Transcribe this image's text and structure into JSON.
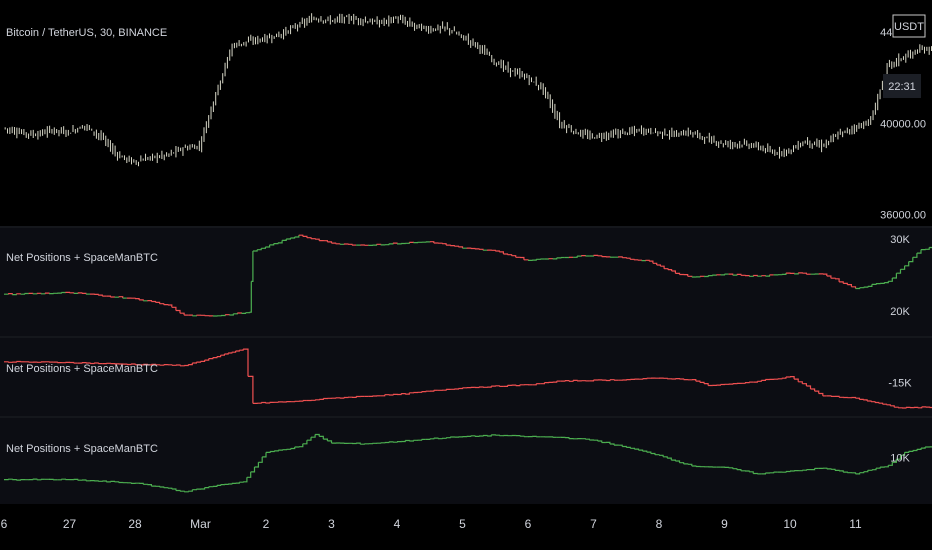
{
  "header": {
    "symbol_title": "Bitcoin / TetherUS, 30, BINANCE",
    "currency": "USDT",
    "countdown": "22:31"
  },
  "colors": {
    "background": "#000000",
    "panel_background": "#0c0d13",
    "text": "#d1d4dc",
    "candles": "#d8d8c8",
    "up": "#4caf50",
    "down": "#f05050",
    "separator": "#2a2e39"
  },
  "chart_data": [
    {
      "type": "candlestick",
      "title": "Bitcoin / TetherUS, 30, BINANCE",
      "y_ticks": [
        "44000.00",
        "40000.00",
        "36000.00"
      ],
      "ylim": [
        35500,
        45400
      ],
      "x_ticks": [
        "6",
        "27",
        "28",
        "Mar",
        "2",
        "3",
        "4",
        "5",
        "6",
        "7",
        "8",
        "9",
        "10",
        "11"
      ],
      "x": [
        0,
        0.5,
        1,
        1.5,
        2,
        2.5,
        3,
        3.5,
        4,
        4.5,
        5,
        5.5,
        6,
        6.5,
        7,
        7.5,
        8,
        8.5,
        9,
        9.5,
        10,
        10.5,
        11,
        11.5,
        12,
        12.5,
        13,
        13.5,
        14,
        14.5,
        15,
        15.5,
        16,
        16.5,
        17,
        17.5,
        18,
        18.5,
        19,
        19.5,
        20,
        20.5,
        21,
        21.5,
        22,
        22.5,
        23,
        23.5,
        24,
        24.5,
        25,
        25.5,
        26,
        26.5,
        27,
        27.5,
        28,
        28.5
      ],
      "close": [
        39800,
        39600,
        39500,
        39700,
        39600,
        39900,
        39400,
        38600,
        38300,
        38500,
        38600,
        38900,
        39000,
        41300,
        43400,
        43600,
        43700,
        43900,
        44300,
        44600,
        44500,
        44600,
        44500,
        44400,
        44600,
        44300,
        44100,
        44200,
        43800,
        43400,
        42700,
        42300,
        42000,
        41500,
        40000,
        39600,
        39400,
        39500,
        39600,
        39700,
        39600,
        39500,
        39600,
        39300,
        39100,
        39100,
        39000,
        38700,
        38800,
        39200,
        39000,
        39500,
        39800,
        40100,
        42500,
        42900,
        43200,
        43300
      ]
    },
    {
      "type": "line",
      "title": "Net Positions + SpaceManBTC",
      "y_ticks": [
        "30K",
        "20K"
      ],
      "ylim": [
        16500,
        31500
      ],
      "x": [
        0,
        2,
        4,
        5,
        5.5,
        6.5,
        7.5,
        7.6,
        9,
        10,
        11,
        13,
        14,
        15,
        16,
        17,
        18,
        19,
        19.7,
        20.5,
        21,
        22,
        23,
        24,
        25,
        26,
        27,
        28,
        28.5
      ],
      "values": [
        22300,
        22500,
        21700,
        20800,
        19400,
        19300,
        19800,
        28300,
        30500,
        29400,
        29100,
        29600,
        28700,
        28300,
        27000,
        27400,
        27700,
        27300,
        26900,
        25200,
        24700,
        25100,
        24800,
        25200,
        25100,
        23100,
        24100,
        28500,
        29000
      ]
    },
    {
      "type": "line",
      "title": "Net Positions + SpaceManBTC",
      "y_ticks": [
        "-15K"
      ],
      "ylim": [
        -19500,
        -9000
      ],
      "x": [
        0,
        2,
        3.5,
        5.5,
        6.5,
        7.3,
        7.6,
        9,
        10,
        12,
        14,
        16,
        17,
        19,
        20,
        21,
        21.5,
        22.5,
        24,
        25,
        26,
        27.3,
        28.5
      ],
      "values": [
        -12200,
        -12300,
        -12500,
        -12700,
        -11500,
        -10500,
        -17800,
        -17500,
        -17100,
        -16600,
        -15700,
        -15300,
        -14800,
        -14600,
        -14400,
        -14600,
        -15400,
        -15100,
        -14200,
        -16800,
        -17100,
        -18400,
        -18300
      ]
    },
    {
      "type": "line",
      "title": "Net Positions + SpaceManBTC",
      "y_ticks": [
        "10K"
      ],
      "ylim": [
        3500,
        15500
      ],
      "x": [
        0,
        2,
        4,
        5,
        5.5,
        6.5,
        7.3,
        8,
        9,
        9.5,
        10,
        11,
        12,
        13,
        14,
        15,
        16,
        17,
        18,
        19,
        20,
        20.5,
        21,
        22,
        23,
        24,
        25,
        26,
        27,
        27.5,
        28.5
      ],
      "values": [
        6900,
        6900,
        6400,
        5700,
        5200,
        6100,
        6600,
        10700,
        11500,
        13200,
        12000,
        11900,
        12200,
        12600,
        12900,
        13100,
        12900,
        12800,
        12400,
        11400,
        10300,
        9500,
        8800,
        8600,
        7700,
        8100,
        8500,
        7700,
        8900,
        10700,
        11800
      ]
    }
  ]
}
